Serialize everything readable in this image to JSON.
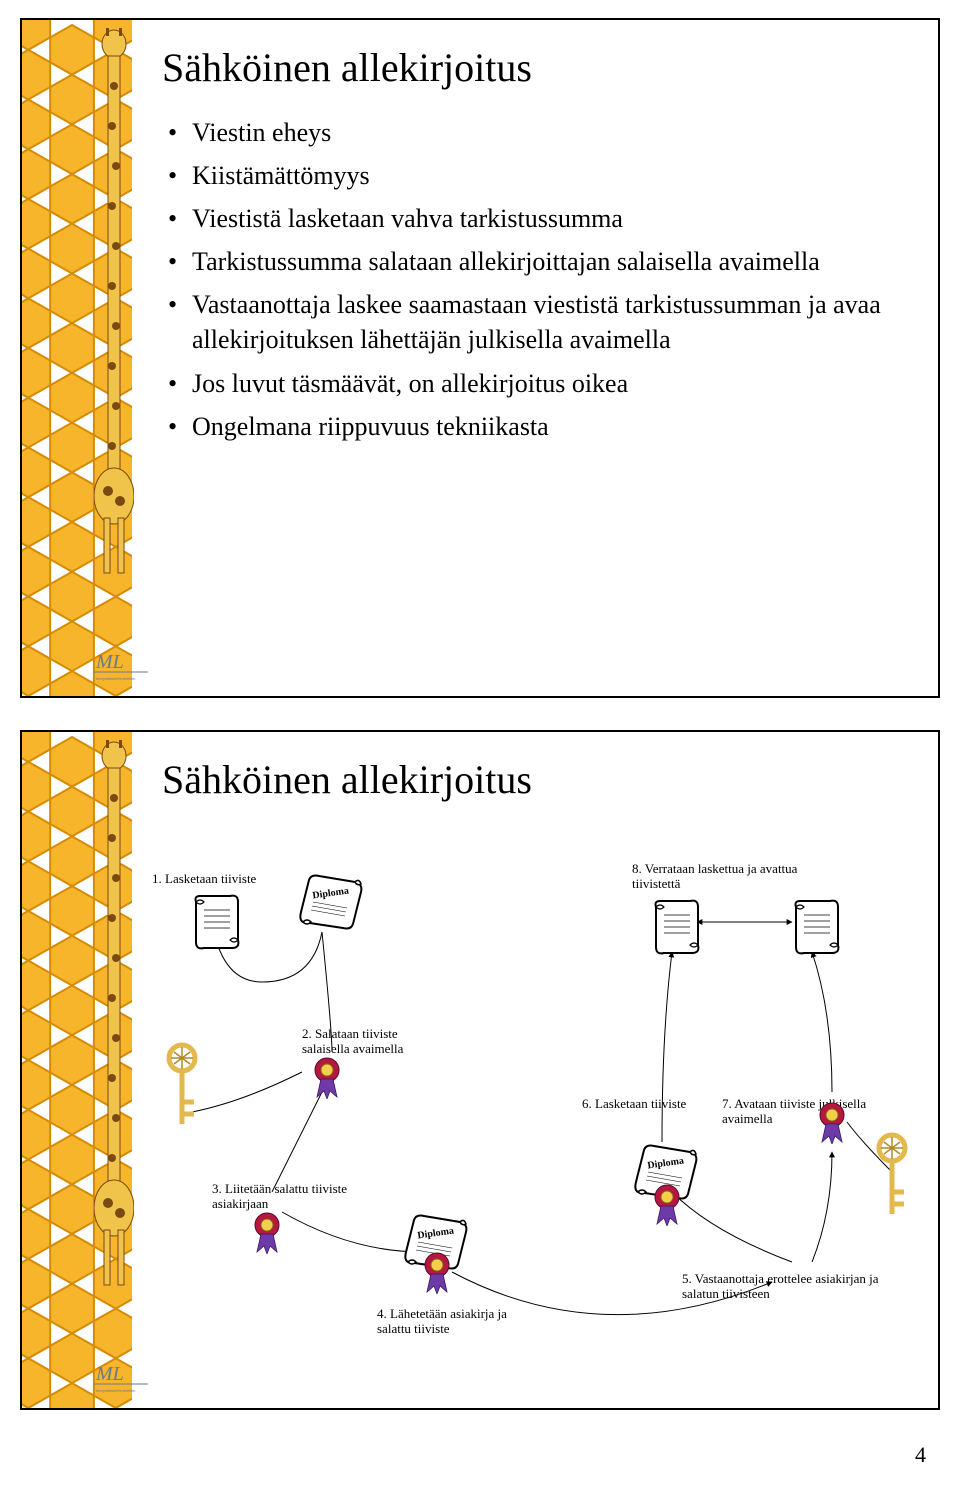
{
  "page_number": "4",
  "colors": {
    "hex_fill": "#f6b52a",
    "hex_stroke": "#d68a00",
    "giraffe_body": "#f0c34a",
    "giraffe_spot": "#7a4a12",
    "slide_border": "#000000",
    "rosette_main": "#b51741",
    "rosette_center": "#f2d04a",
    "rosette_ribbon": "#6d3aa8",
    "key_color": "#e3b94d",
    "key_web": "#b08a2a",
    "scroll_fill": "#ffffff",
    "scroll_stroke": "#000000"
  },
  "slide1": {
    "title": "Sähköinen allekirjoitus",
    "bullets": [
      "Viestin eheys",
      "Kiistämättömyys",
      "Viestistä lasketaan vahva tarkistussumma",
      "Tarkistussumma salataan allekirjoittajan salaisella avaimella",
      "Vastaanottaja laskee saamastaan viestistä tarkistussumman ja avaa allekirjoituksen lähettäjän julkisella avaimella",
      "Jos luvut täsmäävät, on allekirjoitus oikea",
      "Ongelmana riippuvuus tekniikasta"
    ]
  },
  "slide2": {
    "title": "Sähköinen allekirjoitus",
    "labels": {
      "l1": "1. Lasketaan tiiviste",
      "l2": "2. Salataan tiiviste salaisella avaimella",
      "l3": "3. Liitetään  salattu tiiviste asiakirjaan",
      "l4": "4. Lähetetään asiakirja ja salattu tiiviste",
      "l5": "5. Vastaanottaja erottelee asiakirjan ja salatun tiivisteen",
      "l6": "6. Lasketaan tiiviste",
      "l7": "7. Avataan tiiviste julkisella avaimella",
      "l8": "8. Verrataan laskettua ja avattua tiivistettä"
    }
  }
}
